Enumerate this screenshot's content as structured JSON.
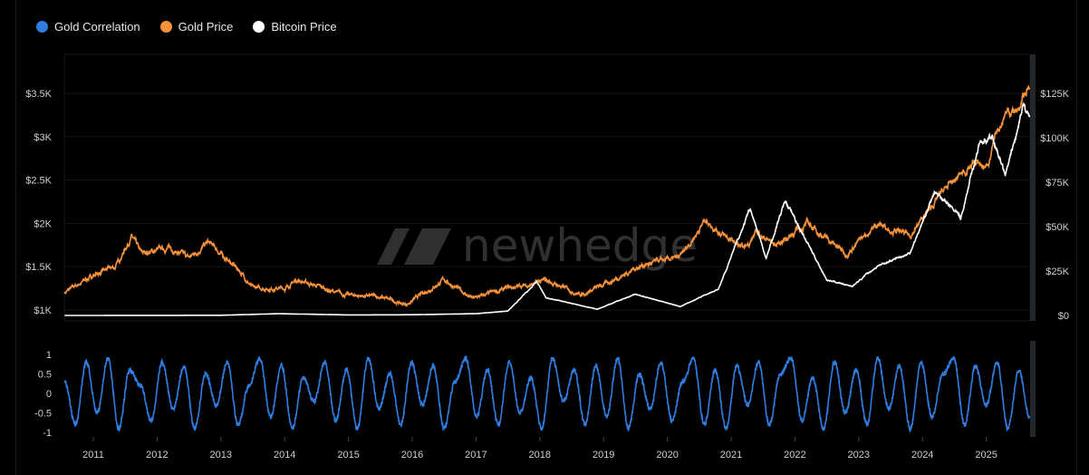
{
  "legend": [
    {
      "label": "Gold Correlation",
      "color": "#2f7de1"
    },
    {
      "label": "Gold Price",
      "color": "#f7913a"
    },
    {
      "label": "Bitcoin Price",
      "color": "#ffffff"
    }
  ],
  "watermark": "newhedge",
  "chart_data": [
    {
      "type": "line",
      "title": "",
      "x_range": [
        2010.55,
        2025.68
      ],
      "x_ticks": [
        "2011",
        "2012",
        "2013",
        "2014",
        "2015",
        "2016",
        "2017",
        "2018",
        "2019",
        "2020",
        "2021",
        "2022",
        "2023",
        "2024",
        "2025"
      ],
      "left_axis": {
        "ticks": [
          "$1K",
          "$1.5K",
          "$2K",
          "$2.5K",
          "$3K",
          "$3.5K"
        ],
        "values": [
          1000,
          1500,
          2000,
          2500,
          3000,
          3500
        ]
      },
      "right_axis": {
        "ticks": [
          "$0",
          "$25K",
          "$50K",
          "$75K",
          "$100K",
          "$125K"
        ],
        "values": [
          0,
          25000,
          50000,
          75000,
          100000,
          125000
        ]
      },
      "grid": true,
      "series": [
        {
          "name": "Gold Price",
          "axis": "left",
          "color": "#f7913a",
          "points": [
            [
              2010.55,
              1200
            ],
            [
              2011,
              1400
            ],
            [
              2011.35,
              1500
            ],
            [
              2011.6,
              1850
            ],
            [
              2011.75,
              1650
            ],
            [
              2012.2,
              1720
            ],
            [
              2012.5,
              1600
            ],
            [
              2012.8,
              1780
            ],
            [
              2013.3,
              1450
            ],
            [
              2013.5,
              1250
            ],
            [
              2014,
              1250
            ],
            [
              2014.2,
              1350
            ],
            [
              2014.9,
              1180
            ],
            [
              2015.5,
              1150
            ],
            [
              2015.9,
              1060
            ],
            [
              2016.5,
              1350
            ],
            [
              2016.95,
              1130
            ],
            [
              2017.5,
              1250
            ],
            [
              2017.9,
              1300
            ],
            [
              2018.1,
              1340
            ],
            [
              2018.65,
              1180
            ],
            [
              2019,
              1290
            ],
            [
              2019.6,
              1520
            ],
            [
              2020.2,
              1600
            ],
            [
              2020.6,
              2050
            ],
            [
              2020.9,
              1850
            ],
            [
              2021.2,
              1700
            ],
            [
              2021.4,
              1900
            ],
            [
              2021.7,
              1750
            ],
            [
              2022.2,
              2000
            ],
            [
              2022.8,
              1650
            ],
            [
              2023.3,
              2000
            ],
            [
              2023.8,
              1850
            ],
            [
              2024,
              2050
            ],
            [
              2024.3,
              2350
            ],
            [
              2024.8,
              2700
            ],
            [
              2025,
              2650
            ],
            [
              2025.3,
              3300
            ],
            [
              2025.5,
              3300
            ],
            [
              2025.68,
              3600
            ]
          ]
        },
        {
          "name": "Bitcoin Price",
          "axis": "right",
          "color": "#ffffff",
          "points": [
            [
              2010.55,
              0
            ],
            [
              2013,
              100
            ],
            [
              2013.9,
              1000
            ],
            [
              2015,
              300
            ],
            [
              2016,
              400
            ],
            [
              2017,
              1000
            ],
            [
              2017.5,
              2500
            ],
            [
              2017.95,
              19000
            ],
            [
              2018.1,
              10000
            ],
            [
              2018.9,
              3500
            ],
            [
              2019.5,
              12000
            ],
            [
              2020.2,
              5000
            ],
            [
              2020.8,
              15000
            ],
            [
              2021.3,
              60000
            ],
            [
              2021.55,
              32000
            ],
            [
              2021.85,
              65000
            ],
            [
              2022.5,
              20000
            ],
            [
              2022.9,
              16500
            ],
            [
              2023.3,
              28000
            ],
            [
              2023.8,
              35000
            ],
            [
              2024.2,
              70000
            ],
            [
              2024.6,
              55000
            ],
            [
              2024.9,
              98000
            ],
            [
              2025.1,
              100000
            ],
            [
              2025.3,
              78000
            ],
            [
              2025.6,
              118000
            ],
            [
              2025.68,
              112000
            ]
          ]
        }
      ]
    },
    {
      "type": "line",
      "title": "",
      "y_ticks": [
        "1",
        "0.5",
        "0",
        "-0.5",
        "-1"
      ],
      "ylim": [
        -1,
        1
      ],
      "series": [
        {
          "name": "Gold Correlation",
          "color": "#2f7de1",
          "x_range": [
            2010.55,
            2025.68
          ],
          "values": [
            0.3,
            -0.8,
            0.8,
            -0.5,
            0.9,
            -0.9,
            0.6,
            0.2,
            -0.7,
            0.8,
            -0.4,
            0.7,
            -0.9,
            0.5,
            -0.3,
            0.8,
            -0.8,
            0.2,
            0.9,
            -0.6,
            0.7,
            -0.9,
            0.4,
            -0.2,
            0.8,
            -0.7,
            0.6,
            -0.9,
            0.9,
            -0.4,
            0.5,
            -0.8,
            0.8,
            -0.3,
            0.7,
            -0.9,
            0.3,
            0.9,
            -0.6,
            0.6,
            -0.8,
            0.8,
            -0.5,
            0.4,
            -0.9,
            0.9,
            -0.2,
            0.6,
            -0.8,
            0.7,
            -0.6,
            0.9,
            -0.9,
            0.5,
            -0.4,
            0.8,
            -0.7,
            0.3,
            0.9,
            -0.8,
            0.6,
            -0.9,
            0.7,
            -0.3,
            0.8,
            -0.8,
            0.5,
            0.9,
            -0.7,
            0.4,
            -0.9,
            0.8,
            -0.5,
            0.6,
            -0.8,
            0.9,
            -0.4,
            0.7,
            -0.9,
            0.8,
            -0.6,
            0.5,
            0.9,
            -0.8,
            0.7,
            -0.3,
            0.8,
            -0.9,
            0.6,
            -0.6
          ]
        }
      ]
    }
  ]
}
